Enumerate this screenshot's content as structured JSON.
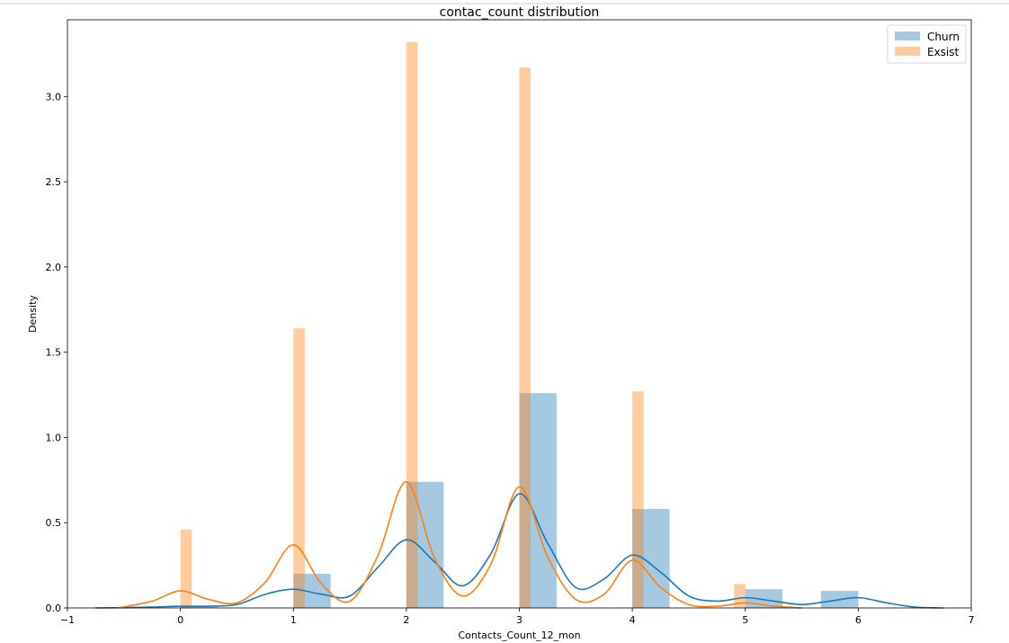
{
  "chart_data": {
    "type": "bar",
    "title": "contac_count distribution",
    "xlabel": "Contacts_Count_12_mon",
    "ylabel": "Density",
    "xlim": [
      -1,
      7
    ],
    "ylim": [
      0,
      3.45
    ],
    "x_ticks": [
      -1,
      0,
      1,
      2,
      3,
      4,
      5,
      6,
      7
    ],
    "x_tick_labels": [
      "−1",
      "0",
      "1",
      "2",
      "3",
      "4",
      "5",
      "6",
      "7"
    ],
    "y_ticks": [
      0.0,
      0.5,
      1.0,
      1.5,
      2.0,
      2.5,
      3.0
    ],
    "y_tick_labels": [
      "0.0",
      "0.5",
      "1.0",
      "1.5",
      "2.0",
      "2.5",
      "3.0"
    ],
    "grid": false,
    "legend_position": "top-right",
    "series": [
      {
        "name": "Churn",
        "color": "#1f77b4",
        "hist": [
          {
            "x_start": 0.0,
            "x_end": 0.33,
            "value": 0.01
          },
          {
            "x_start": 1.0,
            "x_end": 1.33,
            "value": 0.2
          },
          {
            "x_start": 2.0,
            "x_end": 2.33,
            "value": 0.74
          },
          {
            "x_start": 3.0,
            "x_end": 3.33,
            "value": 1.26
          },
          {
            "x_start": 4.0,
            "x_end": 4.33,
            "value": 0.58
          },
          {
            "x_start": 5.0,
            "x_end": 5.33,
            "value": 0.11
          },
          {
            "x_start": 5.67,
            "x_end": 6.0,
            "value": 0.1
          }
        ],
        "kde": {
          "x": [
            -0.75,
            -0.5,
            -0.25,
            0.0,
            0.25,
            0.5,
            0.75,
            1.0,
            1.25,
            1.5,
            1.75,
            2.0,
            2.25,
            2.5,
            2.75,
            3.0,
            3.25,
            3.5,
            3.75,
            4.0,
            4.25,
            4.5,
            4.75,
            5.0,
            5.25,
            5.5,
            5.75,
            6.0,
            6.25,
            6.5,
            6.75
          ],
          "y": [
            0.0,
            0.002,
            0.005,
            0.01,
            0.01,
            0.02,
            0.08,
            0.11,
            0.08,
            0.07,
            0.24,
            0.4,
            0.27,
            0.13,
            0.32,
            0.67,
            0.38,
            0.12,
            0.17,
            0.31,
            0.21,
            0.07,
            0.04,
            0.06,
            0.04,
            0.02,
            0.04,
            0.06,
            0.03,
            0.005,
            0.0
          ]
        }
      },
      {
        "name": "Exsist",
        "color": "#ff7f0e",
        "hist": [
          {
            "x_start": 0.0,
            "x_end": 0.1,
            "value": 0.46
          },
          {
            "x_start": 1.0,
            "x_end": 1.1,
            "value": 1.64
          },
          {
            "x_start": 2.0,
            "x_end": 2.1,
            "value": 3.32
          },
          {
            "x_start": 3.0,
            "x_end": 3.1,
            "value": 3.17
          },
          {
            "x_start": 4.0,
            "x_end": 4.1,
            "value": 1.27
          },
          {
            "x_start": 4.9,
            "x_end": 5.0,
            "value": 0.14
          }
        ],
        "kde": {
          "x": [
            -0.55,
            -0.25,
            0.0,
            0.25,
            0.5,
            0.75,
            1.0,
            1.25,
            1.5,
            1.75,
            2.0,
            2.25,
            2.5,
            2.75,
            3.0,
            3.25,
            3.5,
            3.75,
            4.0,
            4.25,
            4.5,
            4.75,
            5.0,
            5.25,
            5.5
          ],
          "y": [
            0.0,
            0.04,
            0.1,
            0.05,
            0.03,
            0.15,
            0.37,
            0.14,
            0.04,
            0.31,
            0.74,
            0.29,
            0.07,
            0.26,
            0.71,
            0.3,
            0.05,
            0.08,
            0.28,
            0.12,
            0.02,
            0.01,
            0.03,
            0.01,
            0.0
          ]
        }
      }
    ]
  }
}
